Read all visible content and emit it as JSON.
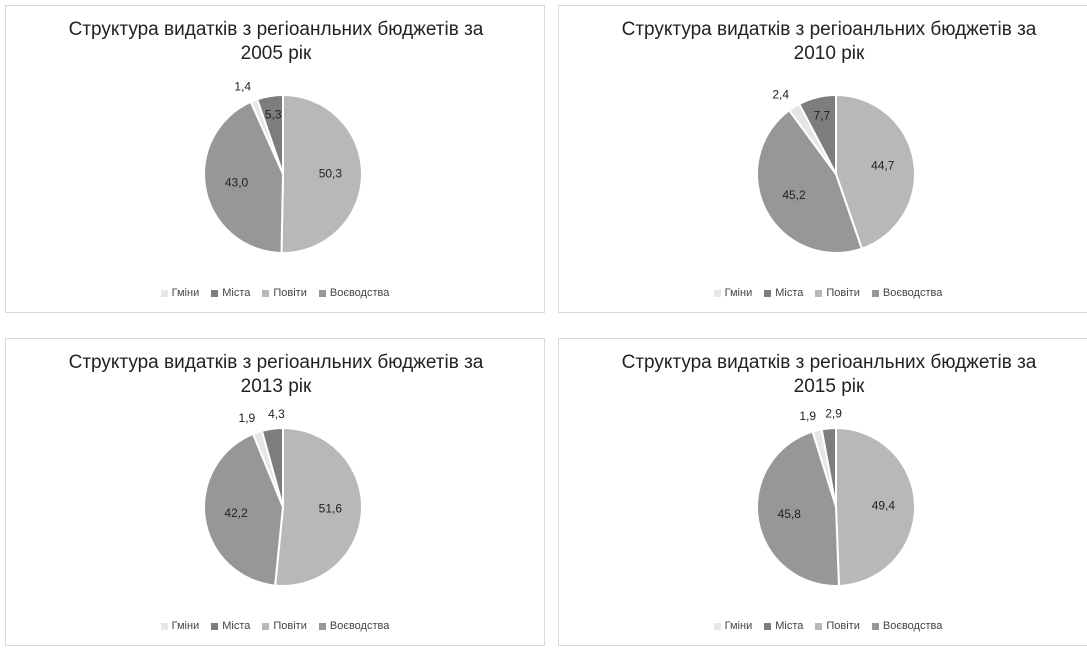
{
  "chart_data": [
    {
      "type": "pie",
      "title": "Структура видатків з регіоанльних бюджетів за 2005 рік",
      "categories": [
        "Гміни",
        "Міста",
        "Повіти",
        "Воєводства"
      ],
      "values": [
        1.4,
        5.3,
        50.3,
        43.0
      ],
      "value_labels": [
        "1,4",
        "5,3",
        "50,3",
        "43,0"
      ],
      "colors": [
        "#e6e6e6",
        "#7d7d7d",
        "#b8b8b8",
        "#979797"
      ],
      "legend": "bottom"
    },
    {
      "type": "pie",
      "title": "Структура видатків з регіоанльних бюджетів за 2010 рік",
      "categories": [
        "Гміни",
        "Міста",
        "Повіти",
        "Воєводства"
      ],
      "values": [
        2.4,
        7.7,
        44.7,
        45.2
      ],
      "value_labels": [
        "2,4",
        "7,7",
        "44,7",
        "45,2"
      ],
      "colors": [
        "#e6e6e6",
        "#7d7d7d",
        "#b8b8b8",
        "#979797"
      ],
      "legend": "bottom"
    },
    {
      "type": "pie",
      "title": "Структура видатків з регіоанльних бюджетів за 2013 рік",
      "categories": [
        "Гміни",
        "Міста",
        "Повіти",
        "Воєводства"
      ],
      "values": [
        1.9,
        4.3,
        51.6,
        42.2
      ],
      "value_labels": [
        "1,9",
        "4,3",
        "51,6",
        "42,2"
      ],
      "colors": [
        "#e6e6e6",
        "#7d7d7d",
        "#b8b8b8",
        "#979797"
      ],
      "legend": "bottom"
    },
    {
      "type": "pie",
      "title": "Структура видатків з регіоанльних бюджетів за 2015 рік",
      "categories": [
        "Гміни",
        "Міста",
        "Повіти",
        "Воєводства"
      ],
      "values": [
        1.9,
        2.9,
        49.4,
        45.8
      ],
      "value_labels": [
        "1,9",
        "2,9",
        "49,4",
        "45,8"
      ],
      "colors": [
        "#e6e6e6",
        "#7d7d7d",
        "#b8b8b8",
        "#979797"
      ],
      "legend": "bottom"
    }
  ]
}
